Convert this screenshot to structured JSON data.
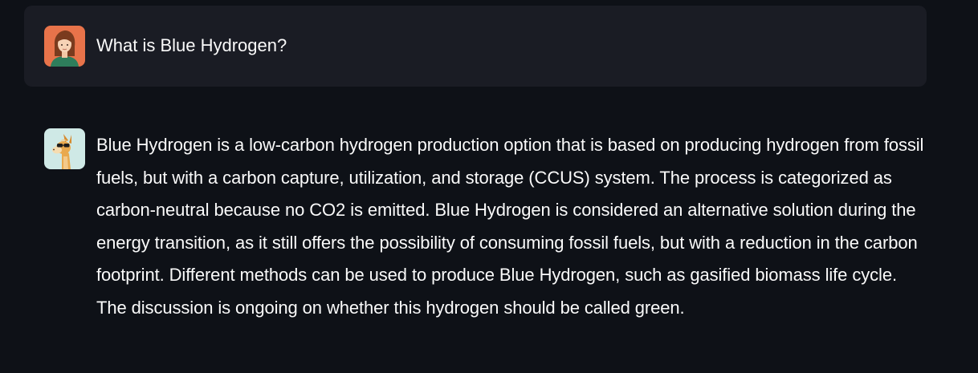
{
  "chat": {
    "user_message": {
      "avatar_icon": "user-woman-avatar-icon",
      "text": "What is Blue Hydrogen?"
    },
    "assistant_message": {
      "avatar_icon": "llama-avatar-icon",
      "text": "Blue Hydrogen is a low-carbon hydrogen production option that is based on producing hydrogen from fossil fuels, but with a carbon capture, utilization, and storage (CCUS) system. The process is categorized as carbon-neutral because no CO2 is emitted. Blue Hydrogen is considered an alternative solution during the energy transition, as it still offers the possibility of consuming fossil fuels, but with a reduction in the carbon footprint. Different methods can be used to produce Blue Hydrogen, such as gasified biomass life cycle. The discussion is ongoing on whether this hydrogen should be called green."
    }
  },
  "colors": {
    "background": "#0e1117",
    "user_bubble": "#1a1c24",
    "text": "#fafafa",
    "user_avatar_bg": "#e8734a",
    "assistant_avatar_bg": "#cfe9e6"
  }
}
